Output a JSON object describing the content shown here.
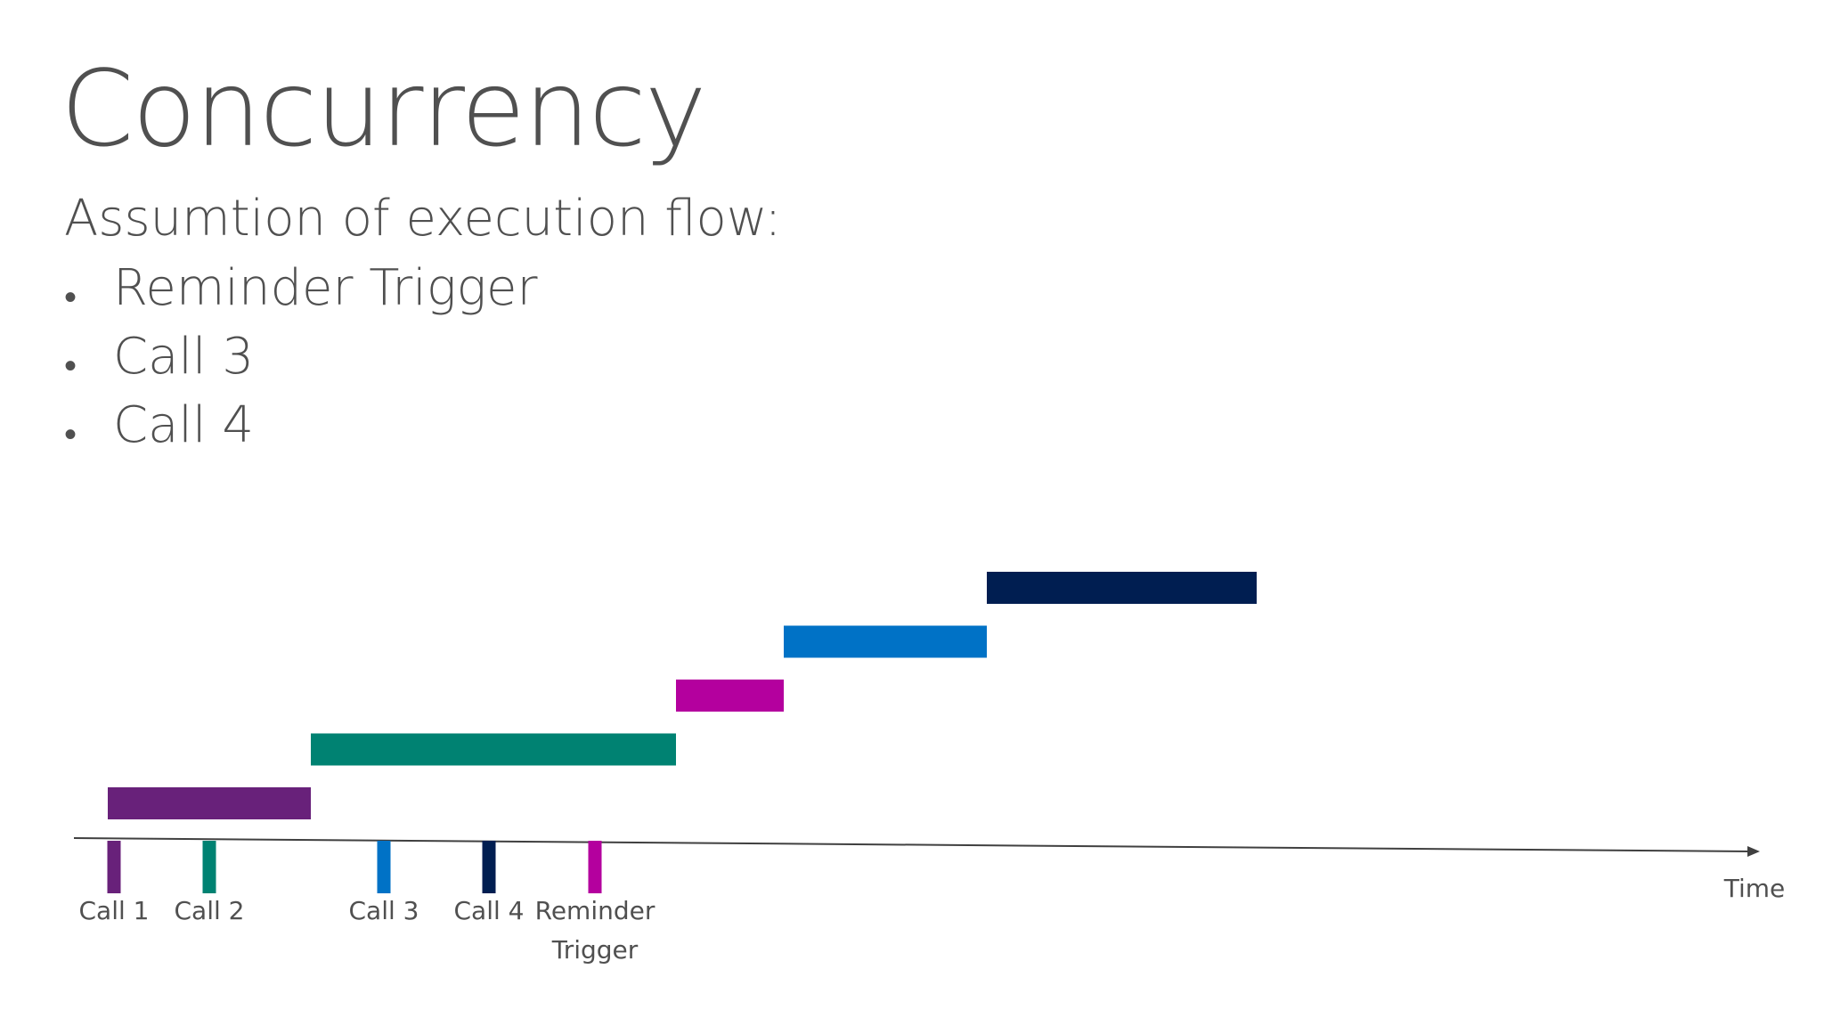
{
  "slide": {
    "title": "Concurrency",
    "subtitle": "Assumtion of execution flow:",
    "bullets": [
      "Reminder Trigger",
      "Call 3",
      "Call 4"
    ]
  },
  "diagram": {
    "axis_label": "Time",
    "arrivals": [
      {
        "id": "call-1",
        "lines": [
          "Call 1"
        ],
        "color": "#68217a"
      },
      {
        "id": "call-2",
        "lines": [
          "Call 2"
        ],
        "color": "#008272"
      },
      {
        "id": "call-3",
        "lines": [
          "Call 3"
        ],
        "color": "#0072c6"
      },
      {
        "id": "call-4",
        "lines": [
          "Call 4"
        ],
        "color": "#001e51"
      },
      {
        "id": "reminder-trigger",
        "lines": [
          "Reminder",
          "Trigger"
        ],
        "color": "#b4009e"
      }
    ],
    "execution_order": [
      "call-1",
      "call-2",
      "reminder-trigger",
      "call-3",
      "call-4"
    ]
  }
}
